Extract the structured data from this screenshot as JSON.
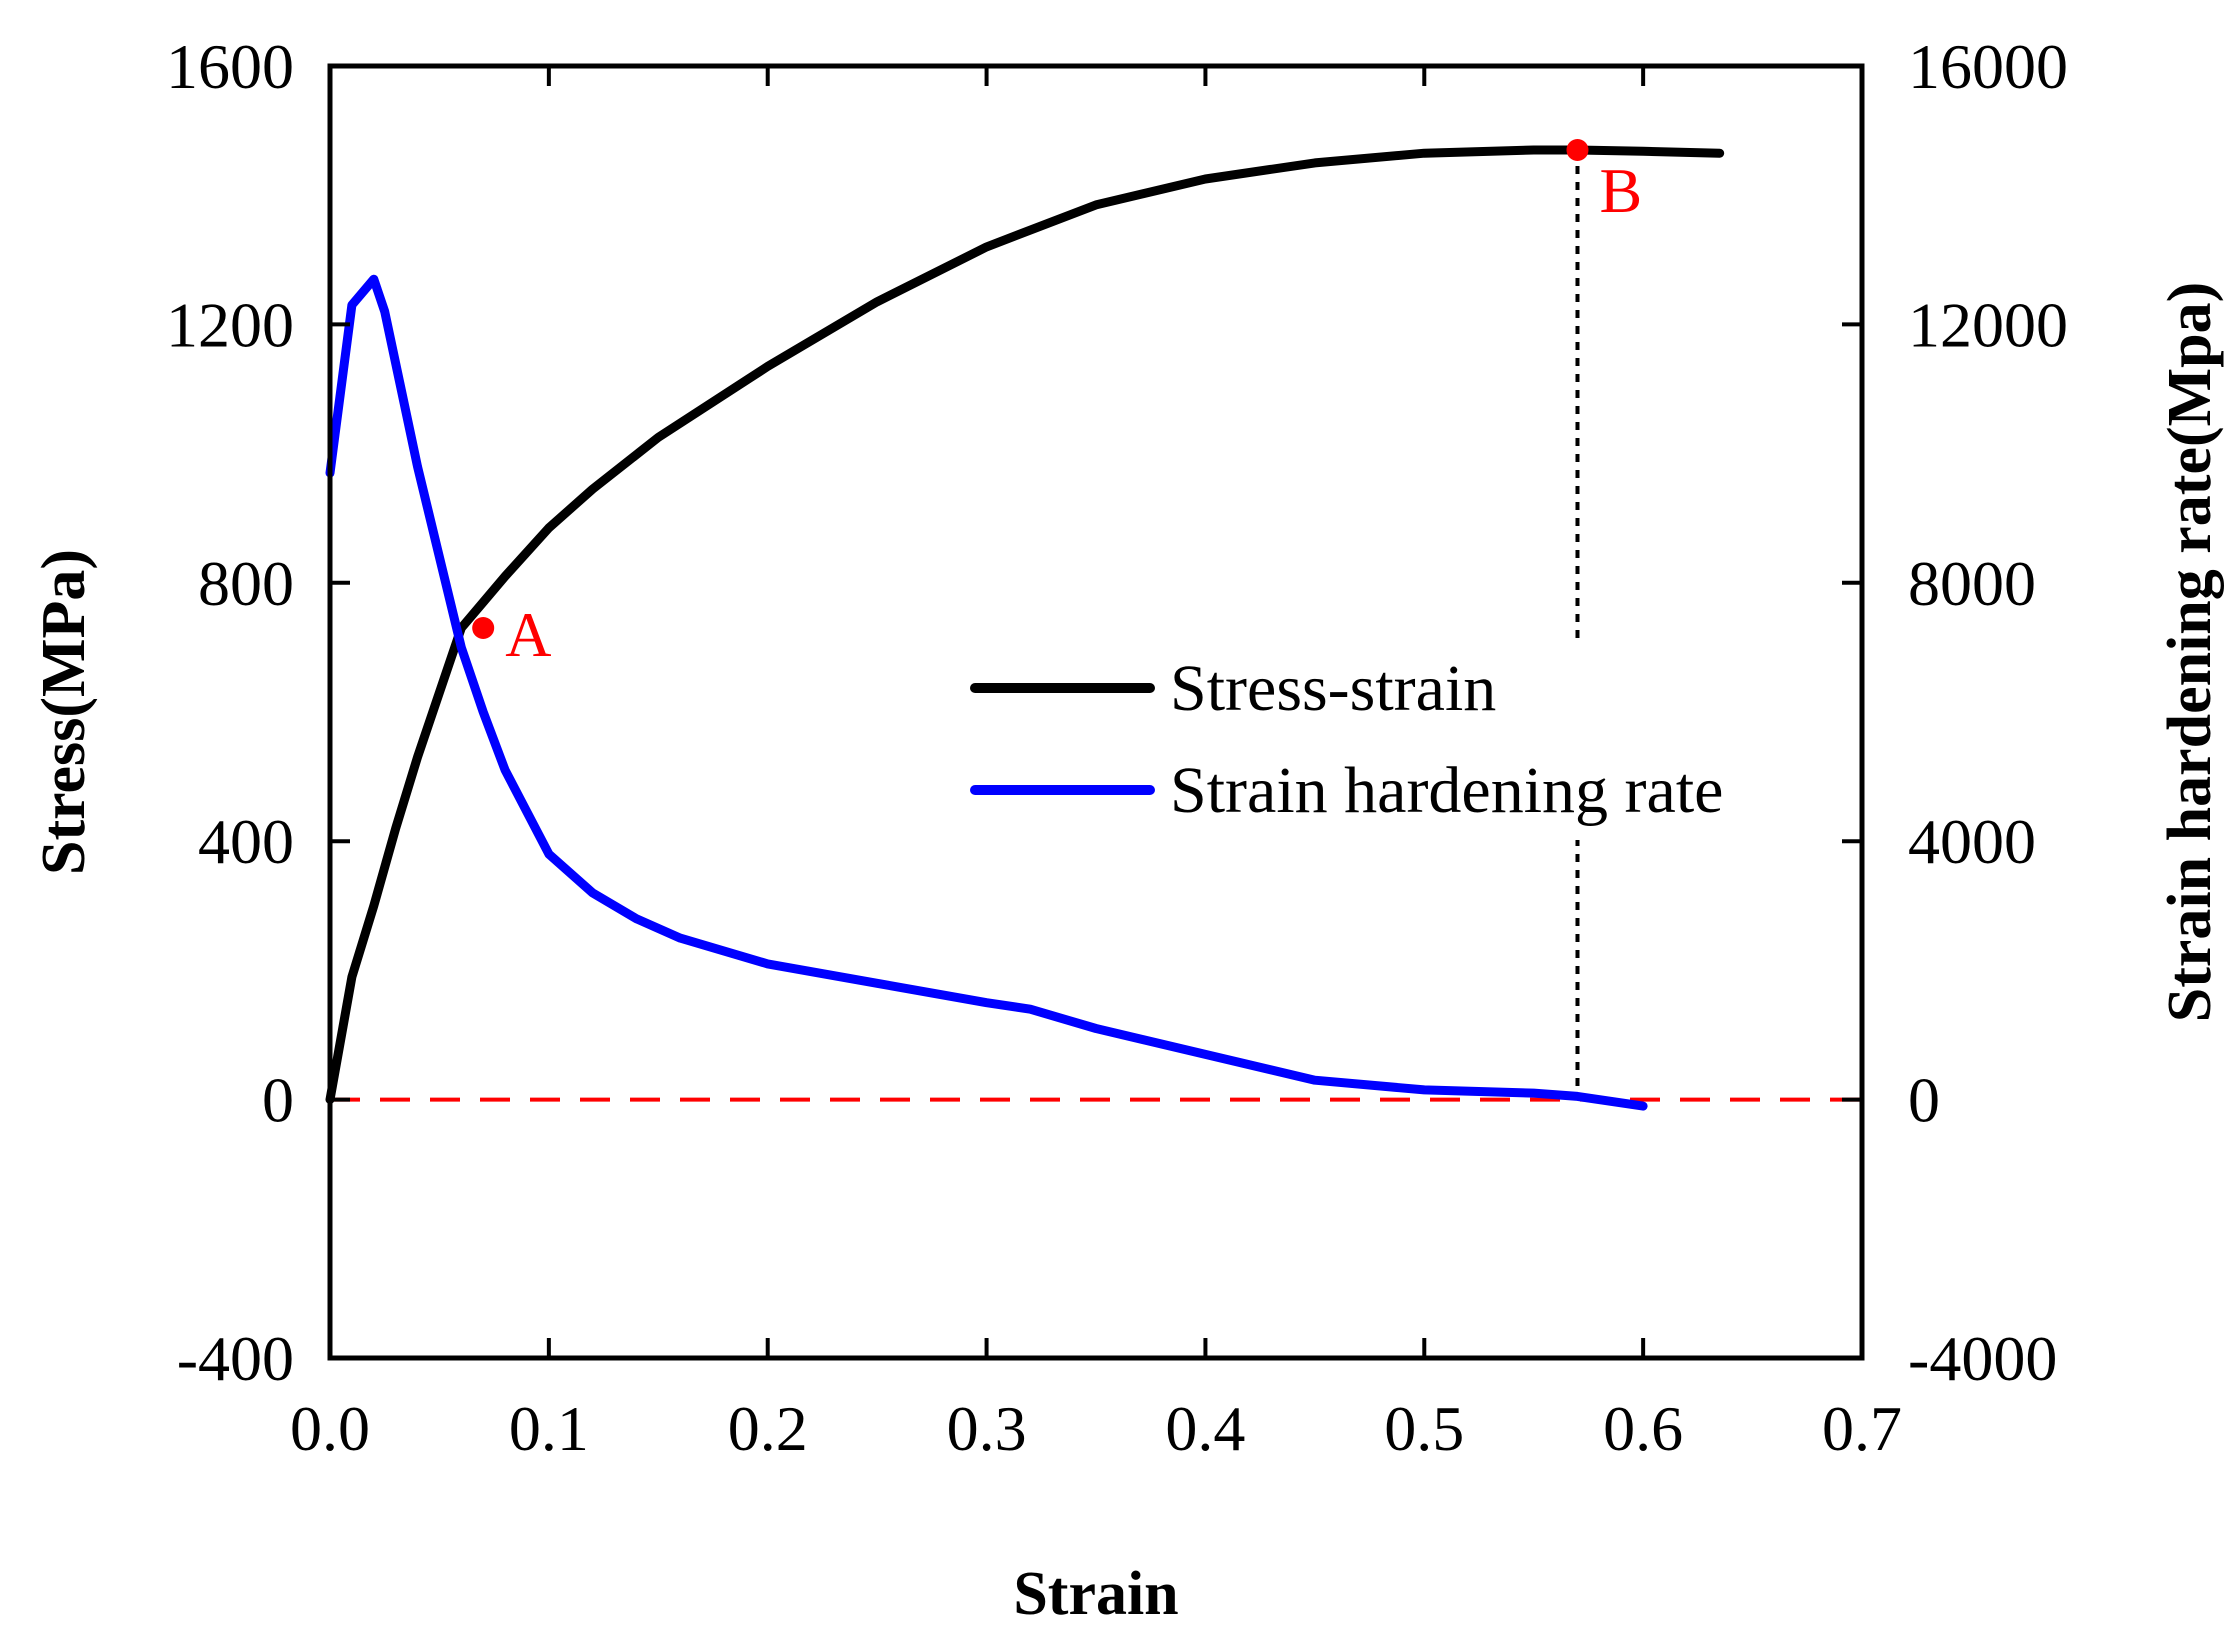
{
  "chart_data": {
    "type": "line",
    "title": "",
    "xlabel": "Strain",
    "ylabel_left": "Stress(MPa)",
    "ylabel_right": "Strain hardening rate(Mpa)",
    "xlim": [
      0.0,
      0.7
    ],
    "ylim_left": [
      -400,
      1600
    ],
    "ylim_right": [
      -4000,
      16000
    ],
    "grid": false,
    "legend_position": "center-right",
    "x_ticks": [
      {
        "value": 0.0,
        "label": "0.0"
      },
      {
        "value": 0.1,
        "label": "0.1"
      },
      {
        "value": 0.2,
        "label": "0.2"
      },
      {
        "value": 0.3,
        "label": "0.3"
      },
      {
        "value": 0.4,
        "label": "0.4"
      },
      {
        "value": 0.5,
        "label": "0.5"
      },
      {
        "value": 0.6,
        "label": "0.6"
      },
      {
        "value": 0.7,
        "label": "0.7"
      }
    ],
    "y_left_ticks": [
      {
        "value": -400,
        "label": "-400"
      },
      {
        "value": 0,
        "label": "0"
      },
      {
        "value": 400,
        "label": "400"
      },
      {
        "value": 800,
        "label": "800"
      },
      {
        "value": 1200,
        "label": "1200"
      },
      {
        "value": 1600,
        "label": "1600"
      }
    ],
    "y_right_ticks": [
      {
        "value": -4000,
        "label": "-4000"
      },
      {
        "value": 0,
        "label": "0"
      },
      {
        "value": 4000,
        "label": "4000"
      },
      {
        "value": 8000,
        "label": "8000"
      },
      {
        "value": 12000,
        "label": "12000"
      },
      {
        "value": 16000,
        "label": "16000"
      }
    ],
    "series": [
      {
        "name": "Stress-strain",
        "axis": "left",
        "color": "#000000",
        "x": [
          0.0,
          0.01,
          0.02,
          0.03,
          0.04,
          0.05,
          0.06,
          0.07,
          0.08,
          0.1,
          0.12,
          0.15,
          0.2,
          0.25,
          0.3,
          0.35,
          0.4,
          0.45,
          0.5,
          0.55,
          0.57,
          0.6,
          0.635
        ],
        "values": [
          0,
          190,
          300,
          420,
          530,
          630,
          730,
          770,
          810,
          885,
          945,
          1025,
          1135,
          1235,
          1320,
          1385,
          1425,
          1450,
          1465,
          1470,
          1470,
          1468,
          1465
        ]
      },
      {
        "name": "Strain hardening rate",
        "axis": "right",
        "color": "#0000ff",
        "x": [
          0.0,
          0.01,
          0.02,
          0.025,
          0.04,
          0.05,
          0.06,
          0.07,
          0.08,
          0.1,
          0.12,
          0.14,
          0.16,
          0.2,
          0.25,
          0.3,
          0.32,
          0.35,
          0.4,
          0.45,
          0.5,
          0.55,
          0.57,
          0.6
        ],
        "values": [
          9700,
          12300,
          12700,
          12200,
          9800,
          8400,
          7000,
          6000,
          5100,
          3800,
          3200,
          2800,
          2500,
          2100,
          1800,
          1500,
          1400,
          1100,
          700,
          300,
          150,
          100,
          50,
          -100
        ]
      }
    ],
    "reference_lines": [
      {
        "type": "horizontal",
        "axis": "left",
        "value": 0,
        "style": "dashed",
        "color": "#ff0000"
      },
      {
        "type": "vertical",
        "x": 0.57,
        "from": 0,
        "to": 1470,
        "style": "dotted",
        "color": "#000000"
      }
    ],
    "annotations": [
      {
        "label": "A",
        "x": 0.07,
        "y": 730,
        "color": "#ff0000"
      },
      {
        "label": "B",
        "x": 0.57,
        "y": 1470,
        "color": "#ff0000"
      }
    ]
  }
}
